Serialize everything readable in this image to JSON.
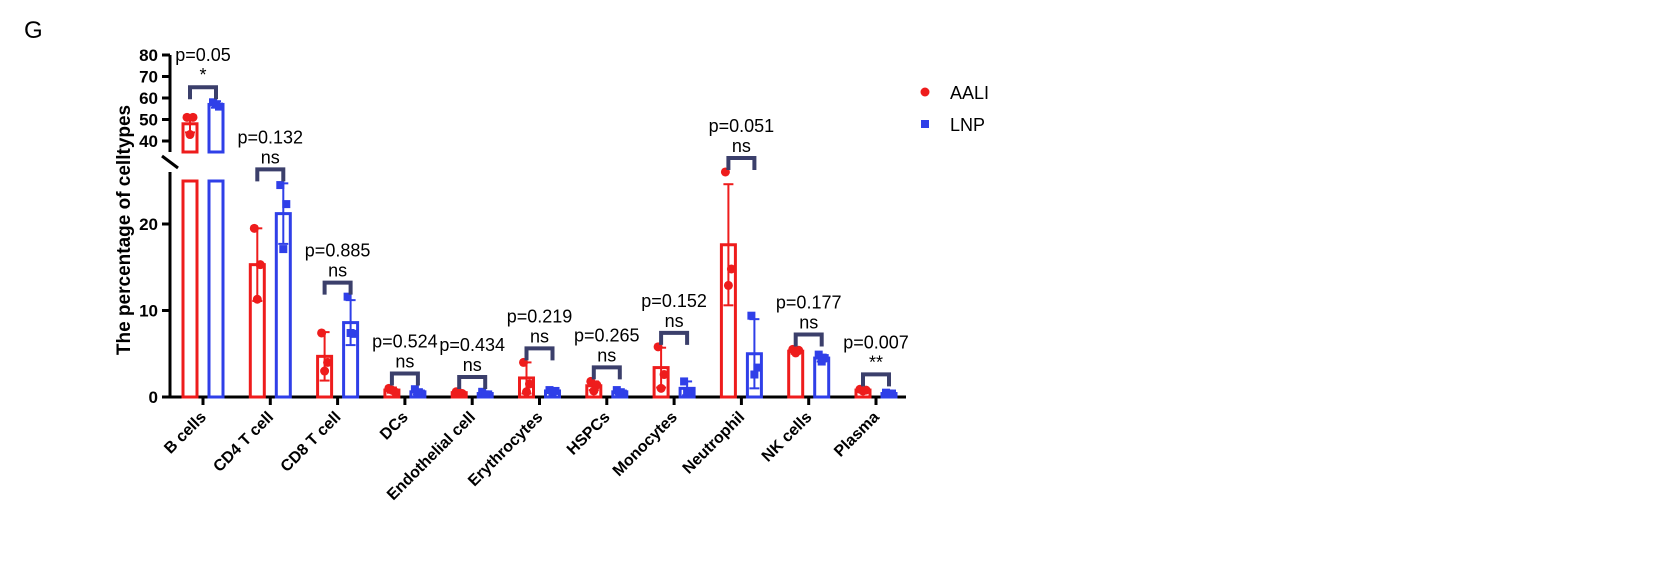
{
  "panel_label": "G",
  "chart_data": {
    "type": "bar",
    "title": "",
    "xlabel": "",
    "ylabel": "The percentage of celltypes",
    "y_axis_break": [
      25,
      35
    ],
    "ylim_lower": [
      0,
      25
    ],
    "ylim_upper": [
      35,
      80
    ],
    "yticks_lower": [
      0,
      10,
      20
    ],
    "yticks_upper": [
      40,
      50,
      60,
      70,
      80
    ],
    "legend_position": "top-right",
    "categories": [
      "B cells",
      "CD4 T cell",
      "CD8 T cell",
      "DCs",
      "Endothelial cell",
      "Erythrocytes",
      "HSPCs",
      "Monocytes",
      "Neutrophil",
      "NK cells",
      "Plasma"
    ],
    "series": [
      {
        "name": "AALI",
        "color": "#ee1c1c",
        "marker": "circle",
        "values": [
          48,
          15.3,
          4.7,
          0.8,
          0.5,
          2.2,
          1.3,
          3.4,
          17.6,
          5.3,
          0.8
        ],
        "sd": [
          4,
          4.2,
          2.8,
          0.3,
          0.2,
          1.8,
          0.5,
          2.3,
          7,
          0.3,
          0.2
        ],
        "points": [
          [
            51,
            51,
            43
          ],
          [
            19.5,
            15.3,
            11.3
          ],
          [
            7.4,
            4.0,
            3.0
          ],
          [
            1.0,
            0.6,
            0.8
          ],
          [
            0.6,
            0.4,
            0.5
          ],
          [
            4.0,
            1.5,
            0.6
          ],
          [
            1.8,
            1.4,
            0.7
          ],
          [
            5.8,
            2.6,
            1.0
          ],
          [
            25.6,
            14.8,
            12.9
          ],
          [
            5.5,
            5.4,
            5.1
          ],
          [
            0.9,
            0.8,
            0.7
          ]
        ]
      },
      {
        "name": "LNP",
        "color": "#2f3fe8",
        "marker": "square",
        "values": [
          57,
          21.2,
          8.6,
          0.6,
          0.4,
          0.7,
          0.6,
          1.0,
          5.0,
          4.5,
          0.4
        ],
        "sd": [
          1.5,
          3.5,
          2.6,
          0.3,
          0.2,
          0.2,
          0.3,
          0.8,
          4,
          0.4,
          0.1
        ],
        "points": [
          [
            58,
            56,
            57
          ],
          [
            24.5,
            22.3,
            17.1
          ],
          [
            11.6,
            7.3,
            7.4
          ],
          [
            0.9,
            0.4,
            0.5
          ],
          [
            0.6,
            0.3,
            0.3
          ],
          [
            0.8,
            0.7,
            0.6
          ],
          [
            0.8,
            0.4,
            0.5
          ],
          [
            1.8,
            0.6,
            0.6
          ],
          [
            9.4,
            3.4,
            2.6
          ],
          [
            4.9,
            4.5,
            4.1
          ],
          [
            0.5,
            0.4,
            0.4
          ]
        ]
      }
    ],
    "annotations": [
      {
        "p": "p=0.05",
        "sig": "*"
      },
      {
        "p": "p=0.132",
        "sig": "ns"
      },
      {
        "p": "p=0.885",
        "sig": "ns"
      },
      {
        "p": "p=0.524",
        "sig": "ns"
      },
      {
        "p": "p=0.434",
        "sig": "ns"
      },
      {
        "p": "p=0.219",
        "sig": "ns"
      },
      {
        "p": "p=0.265",
        "sig": "ns"
      },
      {
        "p": "p=0.152",
        "sig": "ns"
      },
      {
        "p": "p=0.051",
        "sig": "ns"
      },
      {
        "p": "p=0.177",
        "sig": "ns"
      },
      {
        "p": "p=0.007",
        "sig": "**"
      }
    ]
  }
}
